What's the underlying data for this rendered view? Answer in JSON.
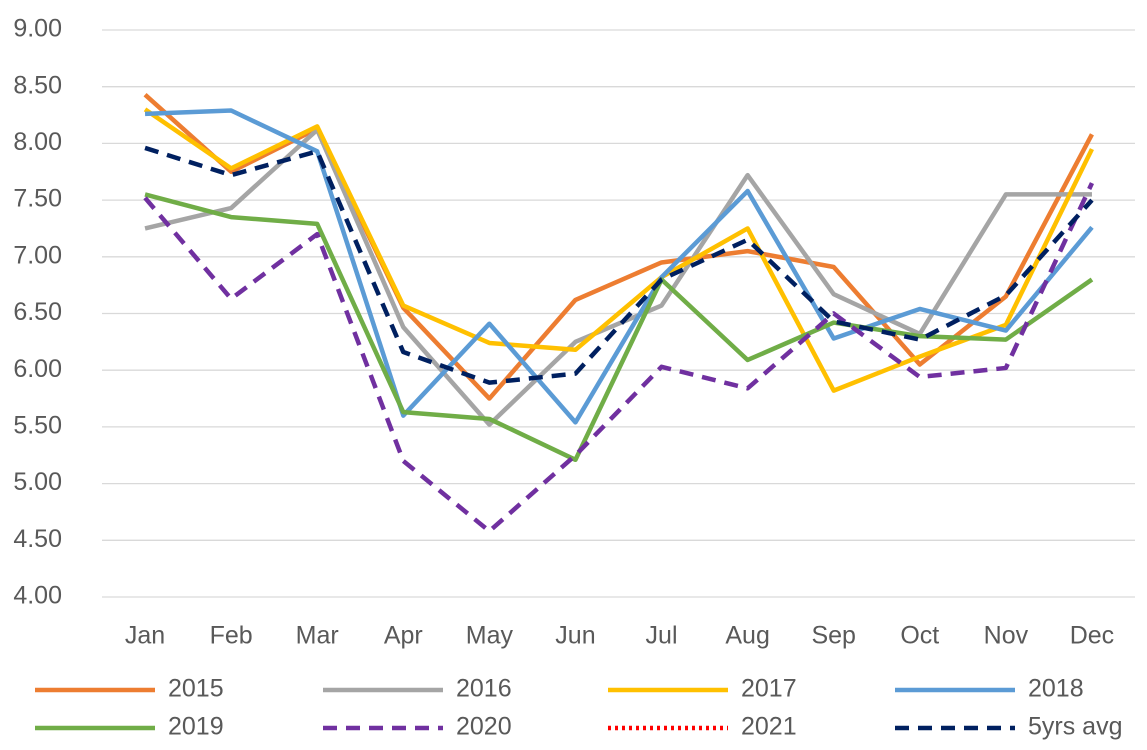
{
  "chart_data": {
    "type": "line",
    "categories": [
      "Jan",
      "Feb",
      "Mar",
      "Apr",
      "May",
      "Jun",
      "Jul",
      "Aug",
      "Sep",
      "Oct",
      "Nov",
      "Dec"
    ],
    "ylim": [
      4,
      9
    ],
    "yticks": [
      {
        "value": 4,
        "label": "4.00"
      },
      {
        "value": 4.5,
        "label": "4.50"
      },
      {
        "value": 5,
        "label": "5.00"
      },
      {
        "value": 5.5,
        "label": "5.50"
      },
      {
        "value": 6,
        "label": "6.00"
      },
      {
        "value": 6.5,
        "label": "6.50"
      },
      {
        "value": 7,
        "label": "7.00"
      },
      {
        "value": 7.5,
        "label": "7.50"
      },
      {
        "value": 8,
        "label": "8.00"
      },
      {
        "value": 8.5,
        "label": "8.50"
      },
      {
        "value": 9,
        "label": "9.00"
      }
    ],
    "grid": true,
    "legend": "bottom",
    "series": [
      {
        "name": "2015",
        "color": "#ed7d31",
        "dash": "solid",
        "values": [
          8.43,
          7.75,
          8.13,
          6.55,
          5.75,
          6.62,
          6.95,
          7.05,
          6.91,
          6.05,
          6.65,
          8.08
        ]
      },
      {
        "name": "2016",
        "color": "#a5a5a5",
        "dash": "solid",
        "values": [
          7.25,
          7.43,
          8.12,
          6.38,
          5.52,
          6.25,
          6.57,
          7.72,
          6.67,
          6.32,
          7.55,
          7.55
        ]
      },
      {
        "name": "2017",
        "color": "#ffc000",
        "dash": "solid",
        "values": [
          8.3,
          7.78,
          8.15,
          6.57,
          6.24,
          6.18,
          6.82,
          7.25,
          5.82,
          6.12,
          6.4,
          7.95
        ]
      },
      {
        "name": "2018",
        "color": "#5b9bd5",
        "dash": "solid",
        "values": [
          8.26,
          8.29,
          7.93,
          5.6,
          6.41,
          5.54,
          6.82,
          7.58,
          6.28,
          6.54,
          6.35,
          7.26
        ]
      },
      {
        "name": "2019",
        "color": "#70ad47",
        "dash": "solid",
        "values": [
          7.55,
          7.35,
          7.29,
          5.63,
          5.57,
          5.21,
          6.8,
          6.09,
          6.42,
          6.3,
          6.27,
          6.8
        ]
      },
      {
        "name": "2020",
        "color": "#7030a0",
        "dash": "dashed",
        "values": [
          7.52,
          6.63,
          7.2,
          5.2,
          4.58,
          5.25,
          6.03,
          5.84,
          6.5,
          5.94,
          6.02,
          7.65
        ]
      },
      {
        "name": "2021",
        "color": "#ff0000",
        "dash": "dotted",
        "values": [
          null,
          null,
          null,
          null,
          null,
          null,
          null,
          null,
          null,
          null,
          null,
          null
        ]
      },
      {
        "name": "5yrs avg",
        "color": "#002060",
        "dash": "dashed",
        "values": [
          7.96,
          7.72,
          7.93,
          6.16,
          5.89,
          5.97,
          6.8,
          7.15,
          6.43,
          6.27,
          6.66,
          7.5
        ]
      }
    ]
  }
}
